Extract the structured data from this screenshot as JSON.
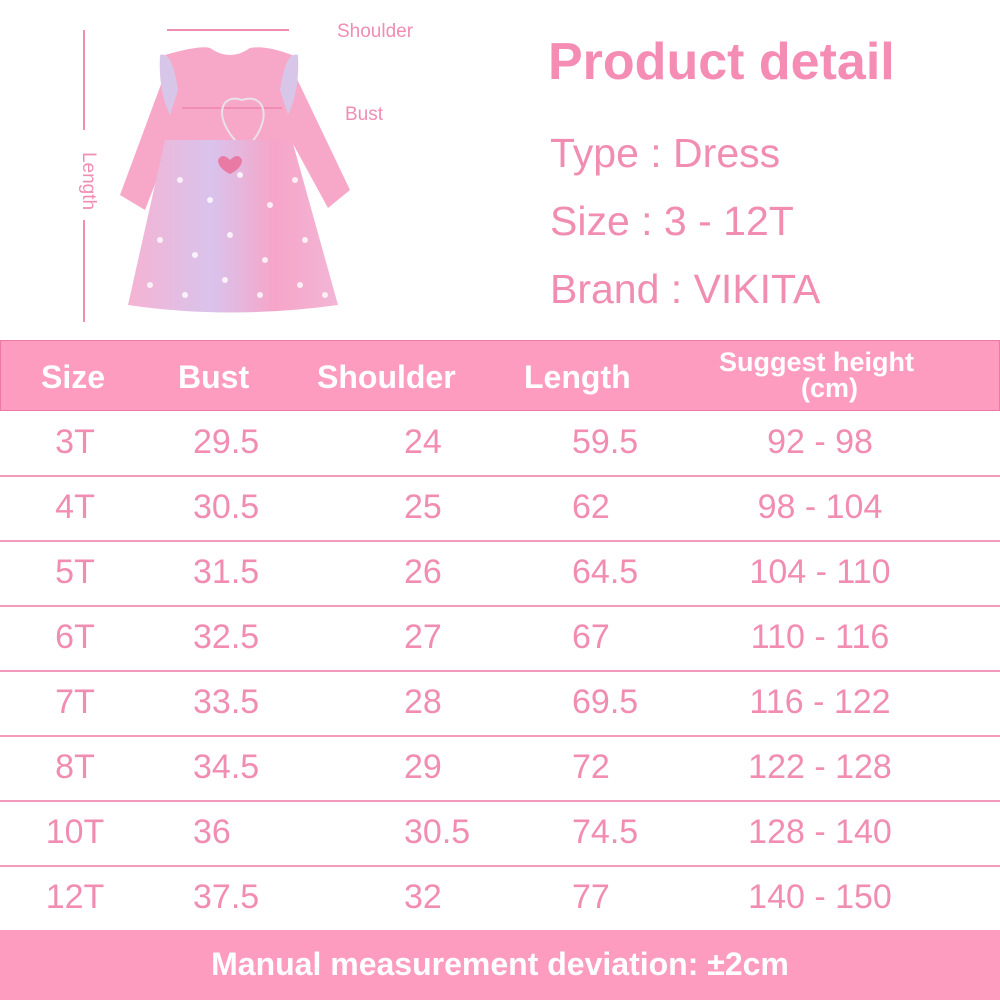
{
  "product": {
    "title": "Product detail",
    "type": "Type : Dress",
    "size": "Size : 3 - 12T",
    "brand": "Brand : VIKITA"
  },
  "diagram": {
    "shoulder_label": "Shoulder",
    "bust_label": "Bust",
    "length_label": "Length"
  },
  "table": {
    "headers": [
      "Size",
      "Bust",
      "Shoulder",
      "Length",
      "Suggest height",
      "(cm)"
    ],
    "rows": [
      [
        "3T",
        "29.5",
        "24",
        "59.5",
        "92 - 98"
      ],
      [
        "4T",
        "30.5",
        "25",
        "62",
        "98 - 104"
      ],
      [
        "5T",
        "31.5",
        "26",
        "64.5",
        "104 - 110"
      ],
      [
        "6T",
        "32.5",
        "27",
        "67",
        "110 - 116"
      ],
      [
        "7T",
        "33.5",
        "28",
        "69.5",
        "116 - 122"
      ],
      [
        "8T",
        "34.5",
        "29",
        "72",
        "122 - 128"
      ],
      [
        "10T",
        "36",
        "30.5",
        "74.5",
        "128 - 140"
      ],
      [
        "12T",
        "37.5",
        "32",
        "77",
        "140 - 150"
      ]
    ]
  },
  "footer": "Manual measurement deviation: ±2cm",
  "colors": {
    "accent": "#fd9cbf",
    "text": "#f28db2",
    "dress": "#f7a8c8"
  }
}
